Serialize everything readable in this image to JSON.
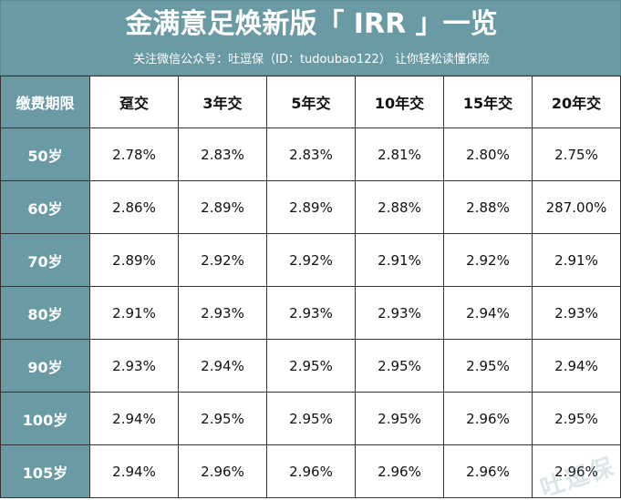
{
  "header": {
    "title": "金满意足焕新版「 IRR 」一览",
    "subtitle": "关注微信公众号：吐逗保（ID：tudoubao122）  让你轻松读懂保险"
  },
  "table": {
    "corner_label": "缴费期限",
    "columns": [
      "趸交",
      "3年交",
      "5年交",
      "10年交",
      "15年交",
      "20年交"
    ],
    "rows": [
      {
        "age": "50岁",
        "values": [
          "2.78%",
          "2.83%",
          "2.83%",
          "2.81%",
          "2.80%",
          "2.75%"
        ]
      },
      {
        "age": "60岁",
        "values": [
          "2.86%",
          "2.89%",
          "2.89%",
          "2.88%",
          "2.88%",
          "287.00%"
        ]
      },
      {
        "age": "70岁",
        "values": [
          "2.89%",
          "2.92%",
          "2.92%",
          "2.91%",
          "2.92%",
          "2.91%"
        ]
      },
      {
        "age": "80岁",
        "values": [
          "2.91%",
          "2.93%",
          "2.93%",
          "2.93%",
          "2.94%",
          "2.93%"
        ]
      },
      {
        "age": "90岁",
        "values": [
          "2.93%",
          "2.94%",
          "2.95%",
          "2.95%",
          "2.95%",
          "2.94%"
        ]
      },
      {
        "age": "100岁",
        "values": [
          "2.94%",
          "2.95%",
          "2.95%",
          "2.95%",
          "2.96%",
          "2.95%"
        ]
      },
      {
        "age": "105岁",
        "values": [
          "2.94%",
          "2.96%",
          "2.96%",
          "2.96%",
          "2.96%",
          "2.96%"
        ]
      }
    ]
  },
  "watermark": "吐逗保",
  "colors": {
    "header_bg": "#6a9aa3",
    "header_text": "#ffffff",
    "grid_line": "#333333"
  }
}
